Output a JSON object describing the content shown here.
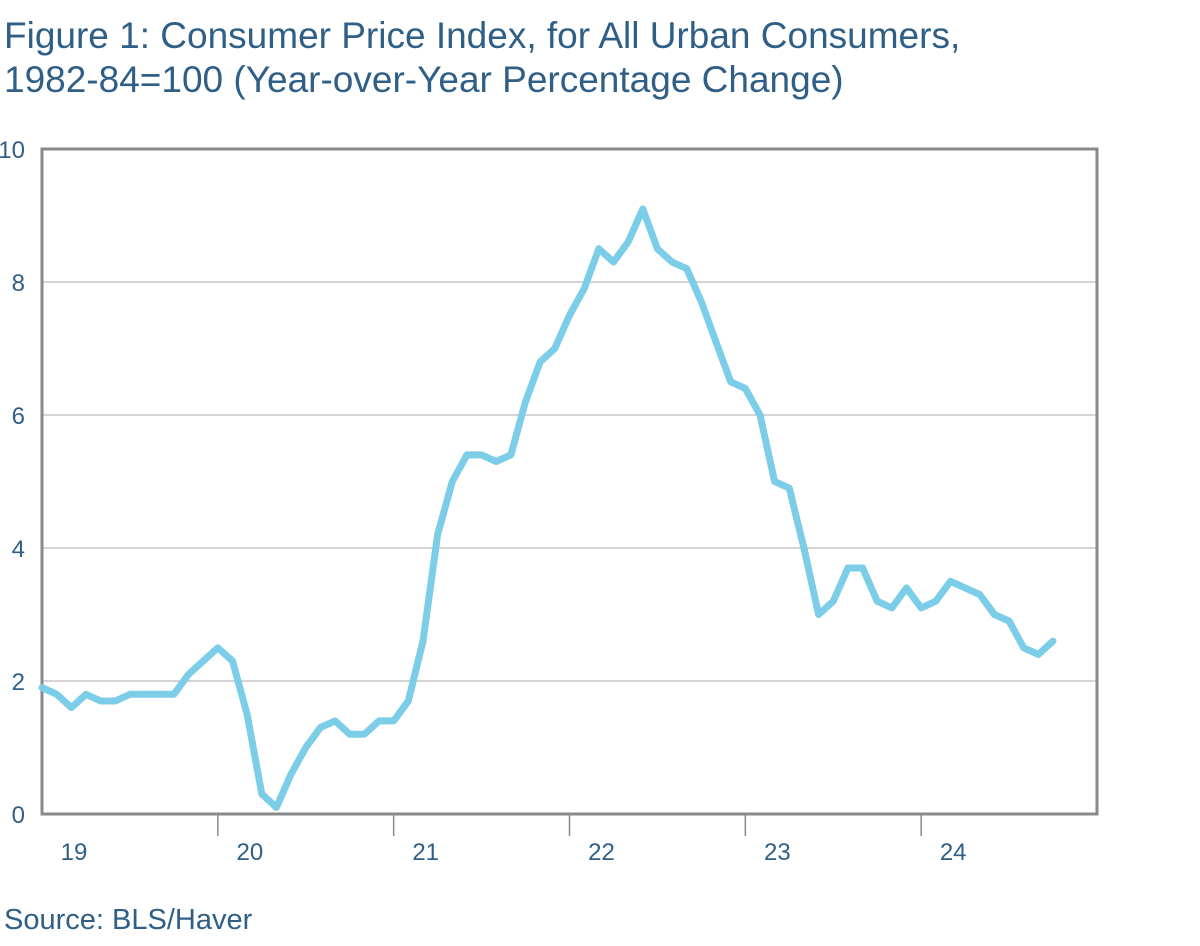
{
  "title_line1": "Figure 1: Consumer Price Index, for All Urban Consumers,",
  "title_line2": "1982-84=100 (Year-over-Year Percentage Change)",
  "source": "Source: BLS/Haver",
  "colors": {
    "line": "#7ccde7",
    "text": "#2f5f86",
    "frame": "#8a8a8a",
    "grid": "#a8a8a8"
  },
  "chart_data": {
    "type": "line",
    "title": "Figure 1: Consumer Price Index, for All Urban Consumers, 1982-84=100 (Year-over-Year Percentage Change)",
    "xlabel": "",
    "ylabel": "",
    "ylim": [
      0,
      10
    ],
    "yticks": [
      "0",
      "2",
      "4",
      "6",
      "8",
      "10"
    ],
    "xticks": [
      "19",
      "20",
      "21",
      "22",
      "23",
      "24"
    ],
    "xlim": [
      "2019-01",
      "2025-01"
    ],
    "grid": true,
    "legend": "none",
    "series": [
      {
        "x": [
          "2019-01",
          "2019-02",
          "2019-03",
          "2019-04",
          "2019-05",
          "2019-06",
          "2019-07",
          "2019-08",
          "2019-09",
          "2019-10",
          "2019-11",
          "2019-12",
          "2020-01",
          "2020-02",
          "2020-03",
          "2020-04",
          "2020-05",
          "2020-06",
          "2020-07",
          "2020-08",
          "2020-09",
          "2020-10",
          "2020-11",
          "2020-12",
          "2021-01",
          "2021-02",
          "2021-03",
          "2021-04",
          "2021-05",
          "2021-06",
          "2021-07",
          "2021-08",
          "2021-09",
          "2021-10",
          "2021-11",
          "2021-12",
          "2022-01",
          "2022-02",
          "2022-03",
          "2022-04",
          "2022-05",
          "2022-06",
          "2022-07",
          "2022-08",
          "2022-09",
          "2022-10",
          "2022-11",
          "2022-12",
          "2023-01",
          "2023-02",
          "2023-03",
          "2023-04",
          "2023-05",
          "2023-06",
          "2023-07",
          "2023-08",
          "2023-09",
          "2023-10",
          "2023-11",
          "2023-12",
          "2024-01",
          "2024-02",
          "2024-03",
          "2024-04",
          "2024-05",
          "2024-06",
          "2024-07",
          "2024-08",
          "2024-09",
          "2024-10"
        ],
        "values": [
          1.9,
          1.8,
          1.6,
          1.8,
          1.7,
          1.7,
          1.8,
          1.8,
          1.8,
          1.8,
          2.1,
          2.3,
          2.5,
          2.3,
          1.5,
          0.3,
          0.1,
          0.6,
          1.0,
          1.3,
          1.4,
          1.2,
          1.2,
          1.4,
          1.4,
          1.7,
          2.6,
          4.2,
          5.0,
          5.4,
          5.4,
          5.3,
          5.4,
          6.2,
          6.8,
          7.0,
          7.5,
          7.9,
          8.5,
          8.3,
          8.6,
          9.1,
          8.5,
          8.3,
          8.2,
          7.7,
          7.1,
          6.5,
          6.4,
          6.0,
          5.0,
          4.9,
          4.0,
          3.0,
          3.2,
          3.7,
          3.7,
          3.2,
          3.1,
          3.4,
          3.1,
          3.2,
          3.5,
          3.4,
          3.3,
          3.0,
          2.9,
          2.5,
          2.4,
          2.6
        ]
      }
    ]
  }
}
